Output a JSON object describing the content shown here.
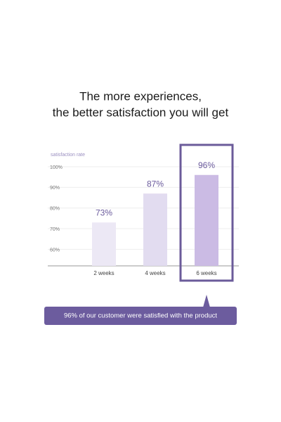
{
  "chart_data": {
    "type": "bar",
    "title": [
      "The more experiences,",
      "the better satisfaction you will get"
    ],
    "y_label": "satisfaction rate",
    "categories": [
      "2 weeks",
      "4 weeks",
      "6 weeks"
    ],
    "values": [
      73,
      87,
      96
    ],
    "value_labels": [
      "73%",
      "87%",
      "96%"
    ],
    "colors": [
      "#ece8f5",
      "#e2dcf0",
      "#cbbbe4"
    ],
    "ylim": [
      52,
      100
    ],
    "yticks": [
      {
        "value": 60,
        "label": "60%"
      },
      {
        "value": 70,
        "label": "70%"
      },
      {
        "value": 80,
        "label": "80%"
      },
      {
        "value": 90,
        "label": "90%"
      },
      {
        "value": 100,
        "label": "100%"
      }
    ],
    "grid": true,
    "highlight_index": 2,
    "annotation": "96% of our customer were satisfied with the product"
  }
}
